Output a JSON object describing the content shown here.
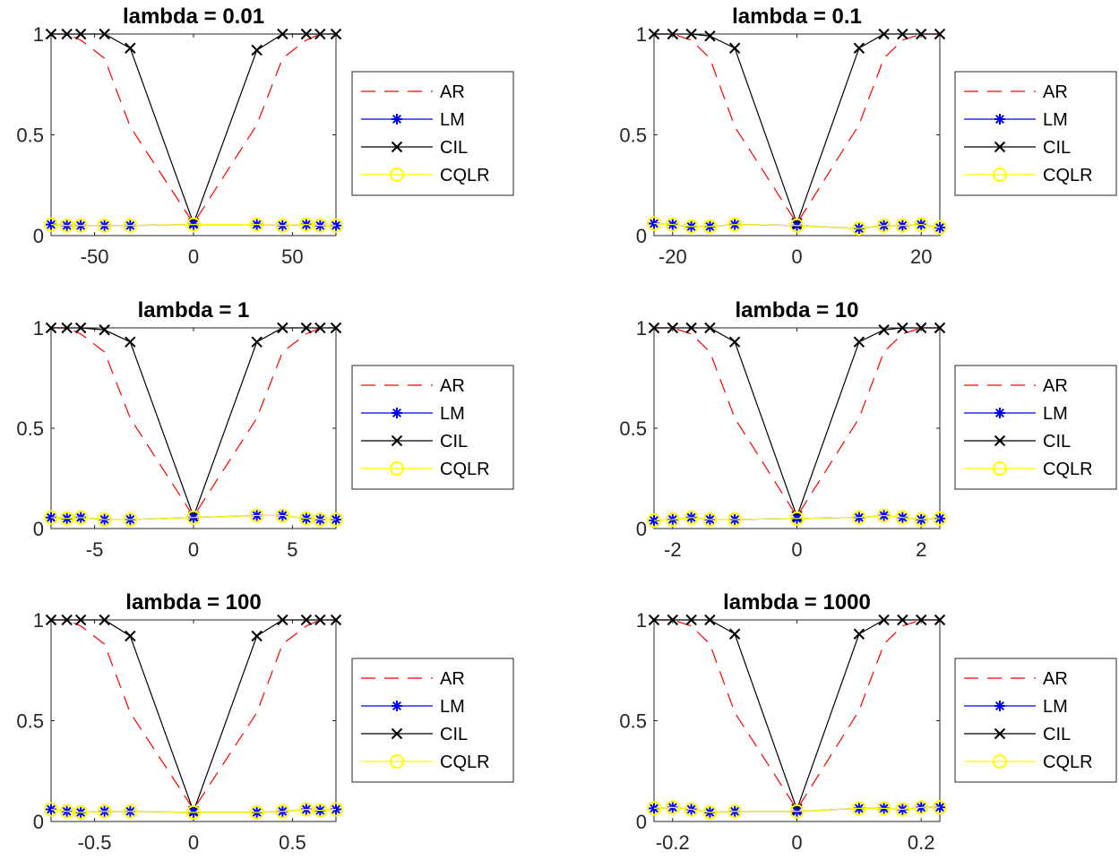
{
  "chart_data": [
    {
      "type": "line",
      "title": "lambda = 0.01",
      "xlim": [
        -72,
        72
      ],
      "ylim": [
        0,
        1
      ],
      "xticks": [
        -50,
        0,
        50
      ],
      "xtick_labels": [
        "-50",
        "0",
        "50"
      ],
      "yticks": [
        0,
        0.5,
        1
      ],
      "ytick_labels": [
        "0",
        "0.5",
        "1"
      ],
      "x": [
        -72,
        -64,
        -57,
        -45,
        -32,
        0,
        32,
        45,
        57,
        64,
        72
      ],
      "series": [
        {
          "name": "AR",
          "style": "dashed",
          "color": "#ff0000",
          "marker": "none",
          "values": [
            1.0,
            1.0,
            0.97,
            0.88,
            0.54,
            0.06,
            0.55,
            0.88,
            0.97,
            1.0,
            1.0
          ]
        },
        {
          "name": "LM",
          "style": "solid",
          "color": "#0000ff",
          "marker": "star",
          "values": [
            0.055,
            0.05,
            0.05,
            0.05,
            0.05,
            0.055,
            0.055,
            0.05,
            0.055,
            0.05,
            0.05
          ]
        },
        {
          "name": "CIL",
          "style": "solid",
          "color": "#000000",
          "marker": "x",
          "values": [
            1.0,
            1.0,
            1.0,
            1.0,
            0.93,
            0.06,
            0.92,
            1.0,
            1.0,
            1.0,
            1.0
          ]
        },
        {
          "name": "CQLR",
          "style": "solid",
          "color": "#ffff00",
          "marker": "circle",
          "values": [
            0.055,
            0.05,
            0.05,
            0.05,
            0.05,
            0.055,
            0.055,
            0.05,
            0.055,
            0.05,
            0.05
          ]
        }
      ]
    },
    {
      "type": "line",
      "title": "lambda = 0.1",
      "xlim": [
        -23,
        23
      ],
      "ylim": [
        0,
        1
      ],
      "xticks": [
        -20,
        0,
        20
      ],
      "xtick_labels": [
        "-20",
        "0",
        "20"
      ],
      "yticks": [
        0,
        0.5,
        1
      ],
      "ytick_labels": [
        "0",
        "0.5",
        "1"
      ],
      "x": [
        -23,
        -20,
        -17,
        -14,
        -10,
        0,
        10,
        14,
        17,
        20,
        23
      ],
      "series": [
        {
          "name": "AR",
          "style": "dashed",
          "color": "#ff0000",
          "marker": "none",
          "values": [
            1.0,
            1.0,
            0.97,
            0.88,
            0.54,
            0.06,
            0.55,
            0.88,
            0.97,
            1.0,
            1.0
          ]
        },
        {
          "name": "LM",
          "style": "solid",
          "color": "#0000ff",
          "marker": "star",
          "values": [
            0.06,
            0.055,
            0.045,
            0.045,
            0.055,
            0.05,
            0.035,
            0.05,
            0.05,
            0.055,
            0.04
          ]
        },
        {
          "name": "CIL",
          "style": "solid",
          "color": "#000000",
          "marker": "x",
          "values": [
            1.0,
            1.0,
            1.0,
            0.99,
            0.93,
            0.06,
            0.93,
            1.0,
            1.0,
            1.0,
            1.0
          ]
        },
        {
          "name": "CQLR",
          "style": "solid",
          "color": "#ffff00",
          "marker": "circle",
          "values": [
            0.06,
            0.055,
            0.045,
            0.045,
            0.055,
            0.05,
            0.035,
            0.05,
            0.05,
            0.055,
            0.04
          ]
        }
      ]
    },
    {
      "type": "line",
      "title": "lambda = 1",
      "xlim": [
        -7.2,
        7.2
      ],
      "ylim": [
        0,
        1
      ],
      "xticks": [
        -5,
        0,
        5
      ],
      "xtick_labels": [
        "-5",
        "0",
        "5"
      ],
      "yticks": [
        0,
        0.5,
        1
      ],
      "ytick_labels": [
        "0",
        "0.5",
        "1"
      ],
      "x": [
        -7.2,
        -6.4,
        -5.7,
        -4.5,
        -3.2,
        0,
        3.2,
        4.5,
        5.7,
        6.4,
        7.2
      ],
      "series": [
        {
          "name": "AR",
          "style": "dashed",
          "color": "#ff0000",
          "marker": "none",
          "values": [
            1.0,
            1.0,
            0.97,
            0.88,
            0.55,
            0.06,
            0.55,
            0.88,
            0.97,
            1.0,
            1.0
          ]
        },
        {
          "name": "LM",
          "style": "solid",
          "color": "#0000ff",
          "marker": "star",
          "values": [
            0.055,
            0.05,
            0.055,
            0.045,
            0.045,
            0.055,
            0.065,
            0.065,
            0.05,
            0.045,
            0.045
          ]
        },
        {
          "name": "CIL",
          "style": "solid",
          "color": "#000000",
          "marker": "x",
          "values": [
            1.0,
            1.0,
            1.0,
            0.99,
            0.93,
            0.06,
            0.93,
            1.0,
            1.0,
            1.0,
            1.0
          ]
        },
        {
          "name": "CQLR",
          "style": "solid",
          "color": "#ffff00",
          "marker": "circle",
          "values": [
            0.055,
            0.05,
            0.055,
            0.045,
            0.045,
            0.055,
            0.065,
            0.065,
            0.05,
            0.045,
            0.045
          ]
        }
      ]
    },
    {
      "type": "line",
      "title": "lambda = 10",
      "xlim": [
        -2.3,
        2.3
      ],
      "ylim": [
        0,
        1
      ],
      "xticks": [
        -2,
        0,
        2
      ],
      "xtick_labels": [
        "-2",
        "0",
        "2"
      ],
      "yticks": [
        0,
        0.5,
        1
      ],
      "ytick_labels": [
        "0",
        "0.5",
        "1"
      ],
      "x": [
        -2.3,
        -2.0,
        -1.7,
        -1.4,
        -1.0,
        0,
        1.0,
        1.4,
        1.7,
        2.0,
        2.3
      ],
      "series": [
        {
          "name": "AR",
          "style": "dashed",
          "color": "#ff0000",
          "marker": "none",
          "values": [
            1.0,
            1.0,
            0.97,
            0.88,
            0.55,
            0.06,
            0.55,
            0.88,
            0.97,
            1.0,
            1.0
          ]
        },
        {
          "name": "LM",
          "style": "solid",
          "color": "#0000ff",
          "marker": "star",
          "values": [
            0.04,
            0.045,
            0.055,
            0.045,
            0.045,
            0.05,
            0.055,
            0.065,
            0.055,
            0.045,
            0.05
          ]
        },
        {
          "name": "CIL",
          "style": "solid",
          "color": "#000000",
          "marker": "x",
          "values": [
            1.0,
            1.0,
            1.0,
            1.0,
            0.93,
            0.06,
            0.93,
            0.99,
            1.0,
            1.0,
            1.0
          ]
        },
        {
          "name": "CQLR",
          "style": "solid",
          "color": "#ffff00",
          "marker": "circle",
          "values": [
            0.04,
            0.045,
            0.055,
            0.045,
            0.045,
            0.05,
            0.055,
            0.065,
            0.055,
            0.045,
            0.05
          ]
        }
      ]
    },
    {
      "type": "line",
      "title": "lambda = 100",
      "xlim": [
        -0.72,
        0.72
      ],
      "ylim": [
        0,
        1
      ],
      "xticks": [
        -0.5,
        0,
        0.5
      ],
      "xtick_labels": [
        "-0.5",
        "0",
        "0.5"
      ],
      "yticks": [
        0,
        0.5,
        1
      ],
      "ytick_labels": [
        "0",
        "0.5",
        "1"
      ],
      "x": [
        -0.72,
        -0.64,
        -0.57,
        -0.45,
        -0.32,
        0,
        0.32,
        0.45,
        0.57,
        0.64,
        0.72
      ],
      "series": [
        {
          "name": "AR",
          "style": "dashed",
          "color": "#ff0000",
          "marker": "none",
          "values": [
            1.0,
            1.0,
            0.97,
            0.88,
            0.54,
            0.06,
            0.54,
            0.88,
            0.97,
            1.0,
            1.0
          ]
        },
        {
          "name": "LM",
          "style": "solid",
          "color": "#0000ff",
          "marker": "star",
          "values": [
            0.06,
            0.05,
            0.045,
            0.05,
            0.05,
            0.045,
            0.045,
            0.05,
            0.06,
            0.055,
            0.06
          ]
        },
        {
          "name": "CIL",
          "style": "solid",
          "color": "#000000",
          "marker": "x",
          "values": [
            1.0,
            1.0,
            1.0,
            1.0,
            0.92,
            0.05,
            0.92,
            1.0,
            1.0,
            1.0,
            1.0
          ]
        },
        {
          "name": "CQLR",
          "style": "solid",
          "color": "#ffff00",
          "marker": "circle",
          "values": [
            0.06,
            0.05,
            0.045,
            0.05,
            0.05,
            0.045,
            0.045,
            0.05,
            0.06,
            0.055,
            0.06
          ]
        }
      ]
    },
    {
      "type": "line",
      "title": "lambda = 1000",
      "xlim": [
        -0.23,
        0.23
      ],
      "ylim": [
        0,
        1
      ],
      "xticks": [
        -0.2,
        0,
        0.2
      ],
      "xtick_labels": [
        "-0.2",
        "0",
        "0.2"
      ],
      "yticks": [
        0,
        0.5,
        1
      ],
      "ytick_labels": [
        "0",
        "0.5",
        "1"
      ],
      "x": [
        -0.23,
        -0.2,
        -0.17,
        -0.14,
        -0.1,
        0,
        0.1,
        0.14,
        0.17,
        0.2,
        0.23
      ],
      "series": [
        {
          "name": "AR",
          "style": "dashed",
          "color": "#ff0000",
          "marker": "none",
          "values": [
            1.0,
            1.0,
            0.97,
            0.88,
            0.54,
            0.06,
            0.55,
            0.88,
            0.97,
            1.0,
            1.0
          ]
        },
        {
          "name": "LM",
          "style": "solid",
          "color": "#0000ff",
          "marker": "star",
          "values": [
            0.065,
            0.07,
            0.06,
            0.045,
            0.05,
            0.05,
            0.065,
            0.065,
            0.06,
            0.07,
            0.07
          ]
        },
        {
          "name": "CIL",
          "style": "solid",
          "color": "#000000",
          "marker": "x",
          "values": [
            1.0,
            1.0,
            1.0,
            1.0,
            0.93,
            0.06,
            0.93,
            1.0,
            1.0,
            1.0,
            1.0
          ]
        },
        {
          "name": "CQLR",
          "style": "solid",
          "color": "#ffff00",
          "marker": "circle",
          "values": [
            0.065,
            0.07,
            0.06,
            0.045,
            0.05,
            0.05,
            0.065,
            0.065,
            0.06,
            0.07,
            0.07
          ]
        }
      ]
    }
  ]
}
